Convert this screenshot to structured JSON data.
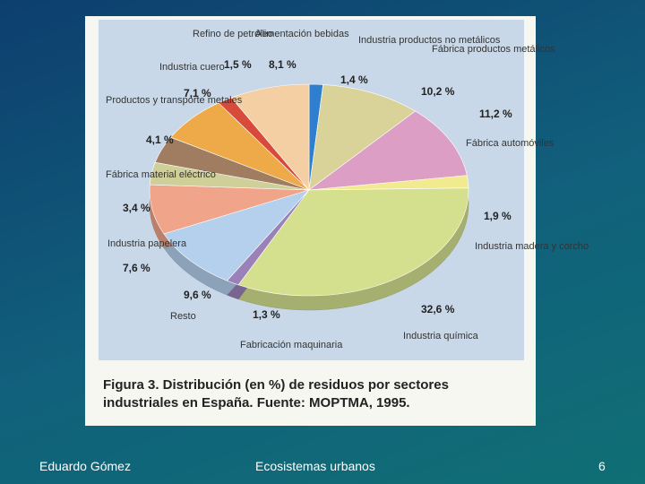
{
  "chart_data": {
    "type": "pie",
    "title": "Figura 3. Distribución (en %) de residuos por sectores industriales en España. Fuente: MOPTMA, 1995.",
    "categories": [
      "Industria productos no metálicos",
      "Fábrica productos metálicos",
      "Fábrica automóviles",
      "Industria madera y corcho",
      "Industria química",
      "Fabricación maquinaria",
      "Resto",
      "Industria papelera",
      "Fábrica material eléctrico",
      "Productos y transporte metales",
      "Industria cuero",
      "Refino de petróleo",
      "Alimentación bebidas"
    ],
    "values": [
      1.4,
      10.2,
      11.2,
      1.9,
      32.6,
      1.3,
      9.6,
      7.6,
      3.4,
      4.1,
      7.1,
      1.5,
      8.1
    ],
    "value_labels": [
      "1,4 %",
      "10,2 %",
      "11,2 %",
      "1,9 %",
      "32,6 %",
      "1,3 %",
      "9,6 %",
      "7,6 %",
      "3,4 %",
      "4,1 %",
      "7,1 %",
      "1,5 %",
      "8,1 %"
    ],
    "colors": [
      "#2f7fd0",
      "#d9d39a",
      "#dc9ec4",
      "#f2ea8e",
      "#d4e08e",
      "#9a82b8",
      "#b4d0ec",
      "#f0a48a",
      "#cfcf9a",
      "#a07c60",
      "#eeaa48",
      "#d84a3a",
      "#f4cfa4"
    ]
  },
  "footer": {
    "author": "Eduardo Gómez",
    "topic": "Ecosistemas urbanos",
    "page": "6"
  }
}
